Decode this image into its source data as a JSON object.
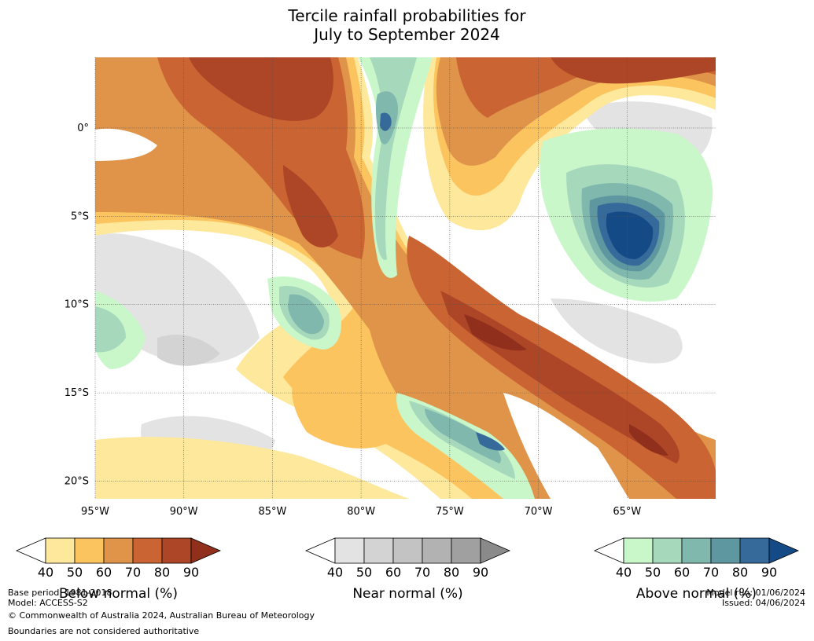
{
  "title": {
    "line1": "Tercile rainfall probabilities for",
    "line2": "July to September 2024"
  },
  "map": {
    "lat_ticks": [
      {
        "lat": 0,
        "label": "0°"
      },
      {
        "lat": -5,
        "label": "5°S"
      },
      {
        "lat": -10,
        "label": "10°S"
      },
      {
        "lat": -15,
        "label": "15°S"
      },
      {
        "lat": -20,
        "label": "20°S"
      }
    ],
    "lon_ticks": [
      {
        "lon": -95,
        "label": "95°W"
      },
      {
        "lon": -90,
        "label": "90°W"
      },
      {
        "lon": -85,
        "label": "85°W"
      },
      {
        "lon": -80,
        "label": "80°W"
      },
      {
        "lon": -75,
        "label": "75°W"
      },
      {
        "lon": -70,
        "label": "70°W"
      },
      {
        "lon": -65,
        "label": "65°W"
      }
    ],
    "extent": {
      "lon_min": -95,
      "lon_max": -60,
      "lat_min": -21,
      "lat_max": 4
    },
    "gridlines": true
  },
  "colorbars": [
    {
      "name": "Below normal (%)",
      "ticks": [
        "40",
        "50",
        "60",
        "70",
        "80",
        "90"
      ],
      "colors": [
        "#fde89b",
        "#fcc45f",
        "#e0944a",
        "#cb6433",
        "#ad4626"
      ],
      "over_color": "#8f2f1c"
    },
    {
      "name": "Near normal (%)",
      "ticks": [
        "40",
        "50",
        "60",
        "70",
        "80",
        "90"
      ],
      "colors": [
        "#e3e3e3",
        "#d3d3d3",
        "#c3c3c3",
        "#b2b2b2",
        "#a0a0a0"
      ],
      "over_color": "#8a8a8a"
    },
    {
      "name": "Above normal (%)",
      "ticks": [
        "40",
        "50",
        "60",
        "70",
        "80",
        "90"
      ],
      "colors": [
        "#c9f7c9",
        "#a6d8bc",
        "#80b8ae",
        "#5f97a0",
        "#366a9a"
      ],
      "over_color": "#144b87"
    }
  ],
  "footer": {
    "base_period": "Base period: 1981-2018",
    "model": "Model: ACCESS-S2",
    "copyright": "© Commonwealth of Australia 2024, Australian Bureau of Meteorology",
    "boundaries": "Boundaries are not considered authoritative",
    "model_run": "Model run: 01/06/2024",
    "issued": "Issued: 04/06/2024"
  }
}
